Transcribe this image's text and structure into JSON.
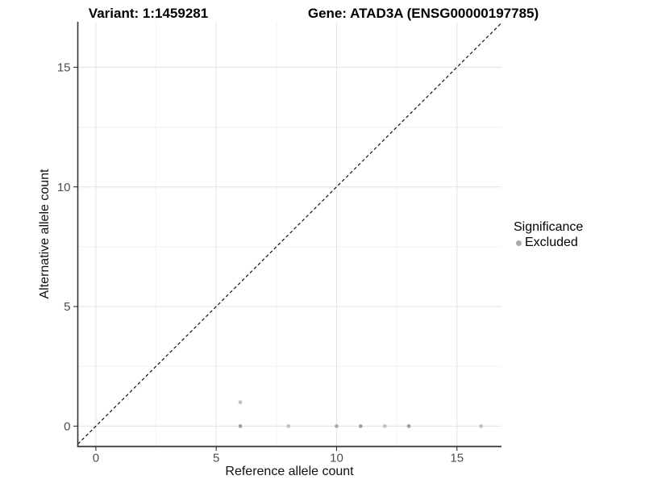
{
  "chart_data": {
    "type": "scatter",
    "titles": {
      "left": "Variant: 1:1459281",
      "right": "Gene: ATAD3A (ENSG00000197785)"
    },
    "xlabel": "Reference allele count",
    "ylabel": "Alternative allele count",
    "xlim": [
      -0.75,
      16.85
    ],
    "ylim": [
      -0.85,
      16.9
    ],
    "xticks": [
      0,
      5,
      10,
      15
    ],
    "yticks": [
      0,
      5,
      10,
      15
    ],
    "xticks_minor": [
      2.5,
      7.5,
      12.5
    ],
    "yticks_minor": [
      2.5,
      7.5,
      12.5
    ],
    "grid": "major+minor",
    "identity_line": {
      "slope": 1,
      "intercept": 0,
      "style": "dashed",
      "color": "#111111"
    },
    "series": [
      {
        "name": "Excluded",
        "marker": "circle",
        "points": [
          {
            "x": 6,
            "y": 0,
            "shade": "dark"
          },
          {
            "x": 6,
            "y": 1,
            "shade": "light"
          },
          {
            "x": 8,
            "y": 0,
            "shade": "light"
          },
          {
            "x": 10,
            "y": 0,
            "shade": "medium"
          },
          {
            "x": 11,
            "y": 0,
            "shade": "dark"
          },
          {
            "x": 12,
            "y": 0,
            "shade": "light"
          },
          {
            "x": 13,
            "y": 0,
            "shade": "dark"
          },
          {
            "x": 16,
            "y": 0,
            "shade": "light"
          }
        ]
      }
    ],
    "point_colors": {
      "dark": "#a0a0a0",
      "medium": "#acacac",
      "light": "#c0c0c0"
    },
    "legend": {
      "title": "Significance",
      "position": "right",
      "items": [
        {
          "label": "Excluded",
          "color": "#a9a9a9"
        }
      ]
    },
    "colors": {
      "grid_major": "#e5e5e5",
      "grid_minor": "#f2f2f2",
      "axis": "#333333",
      "tick_label": "#4d4d4d"
    }
  }
}
